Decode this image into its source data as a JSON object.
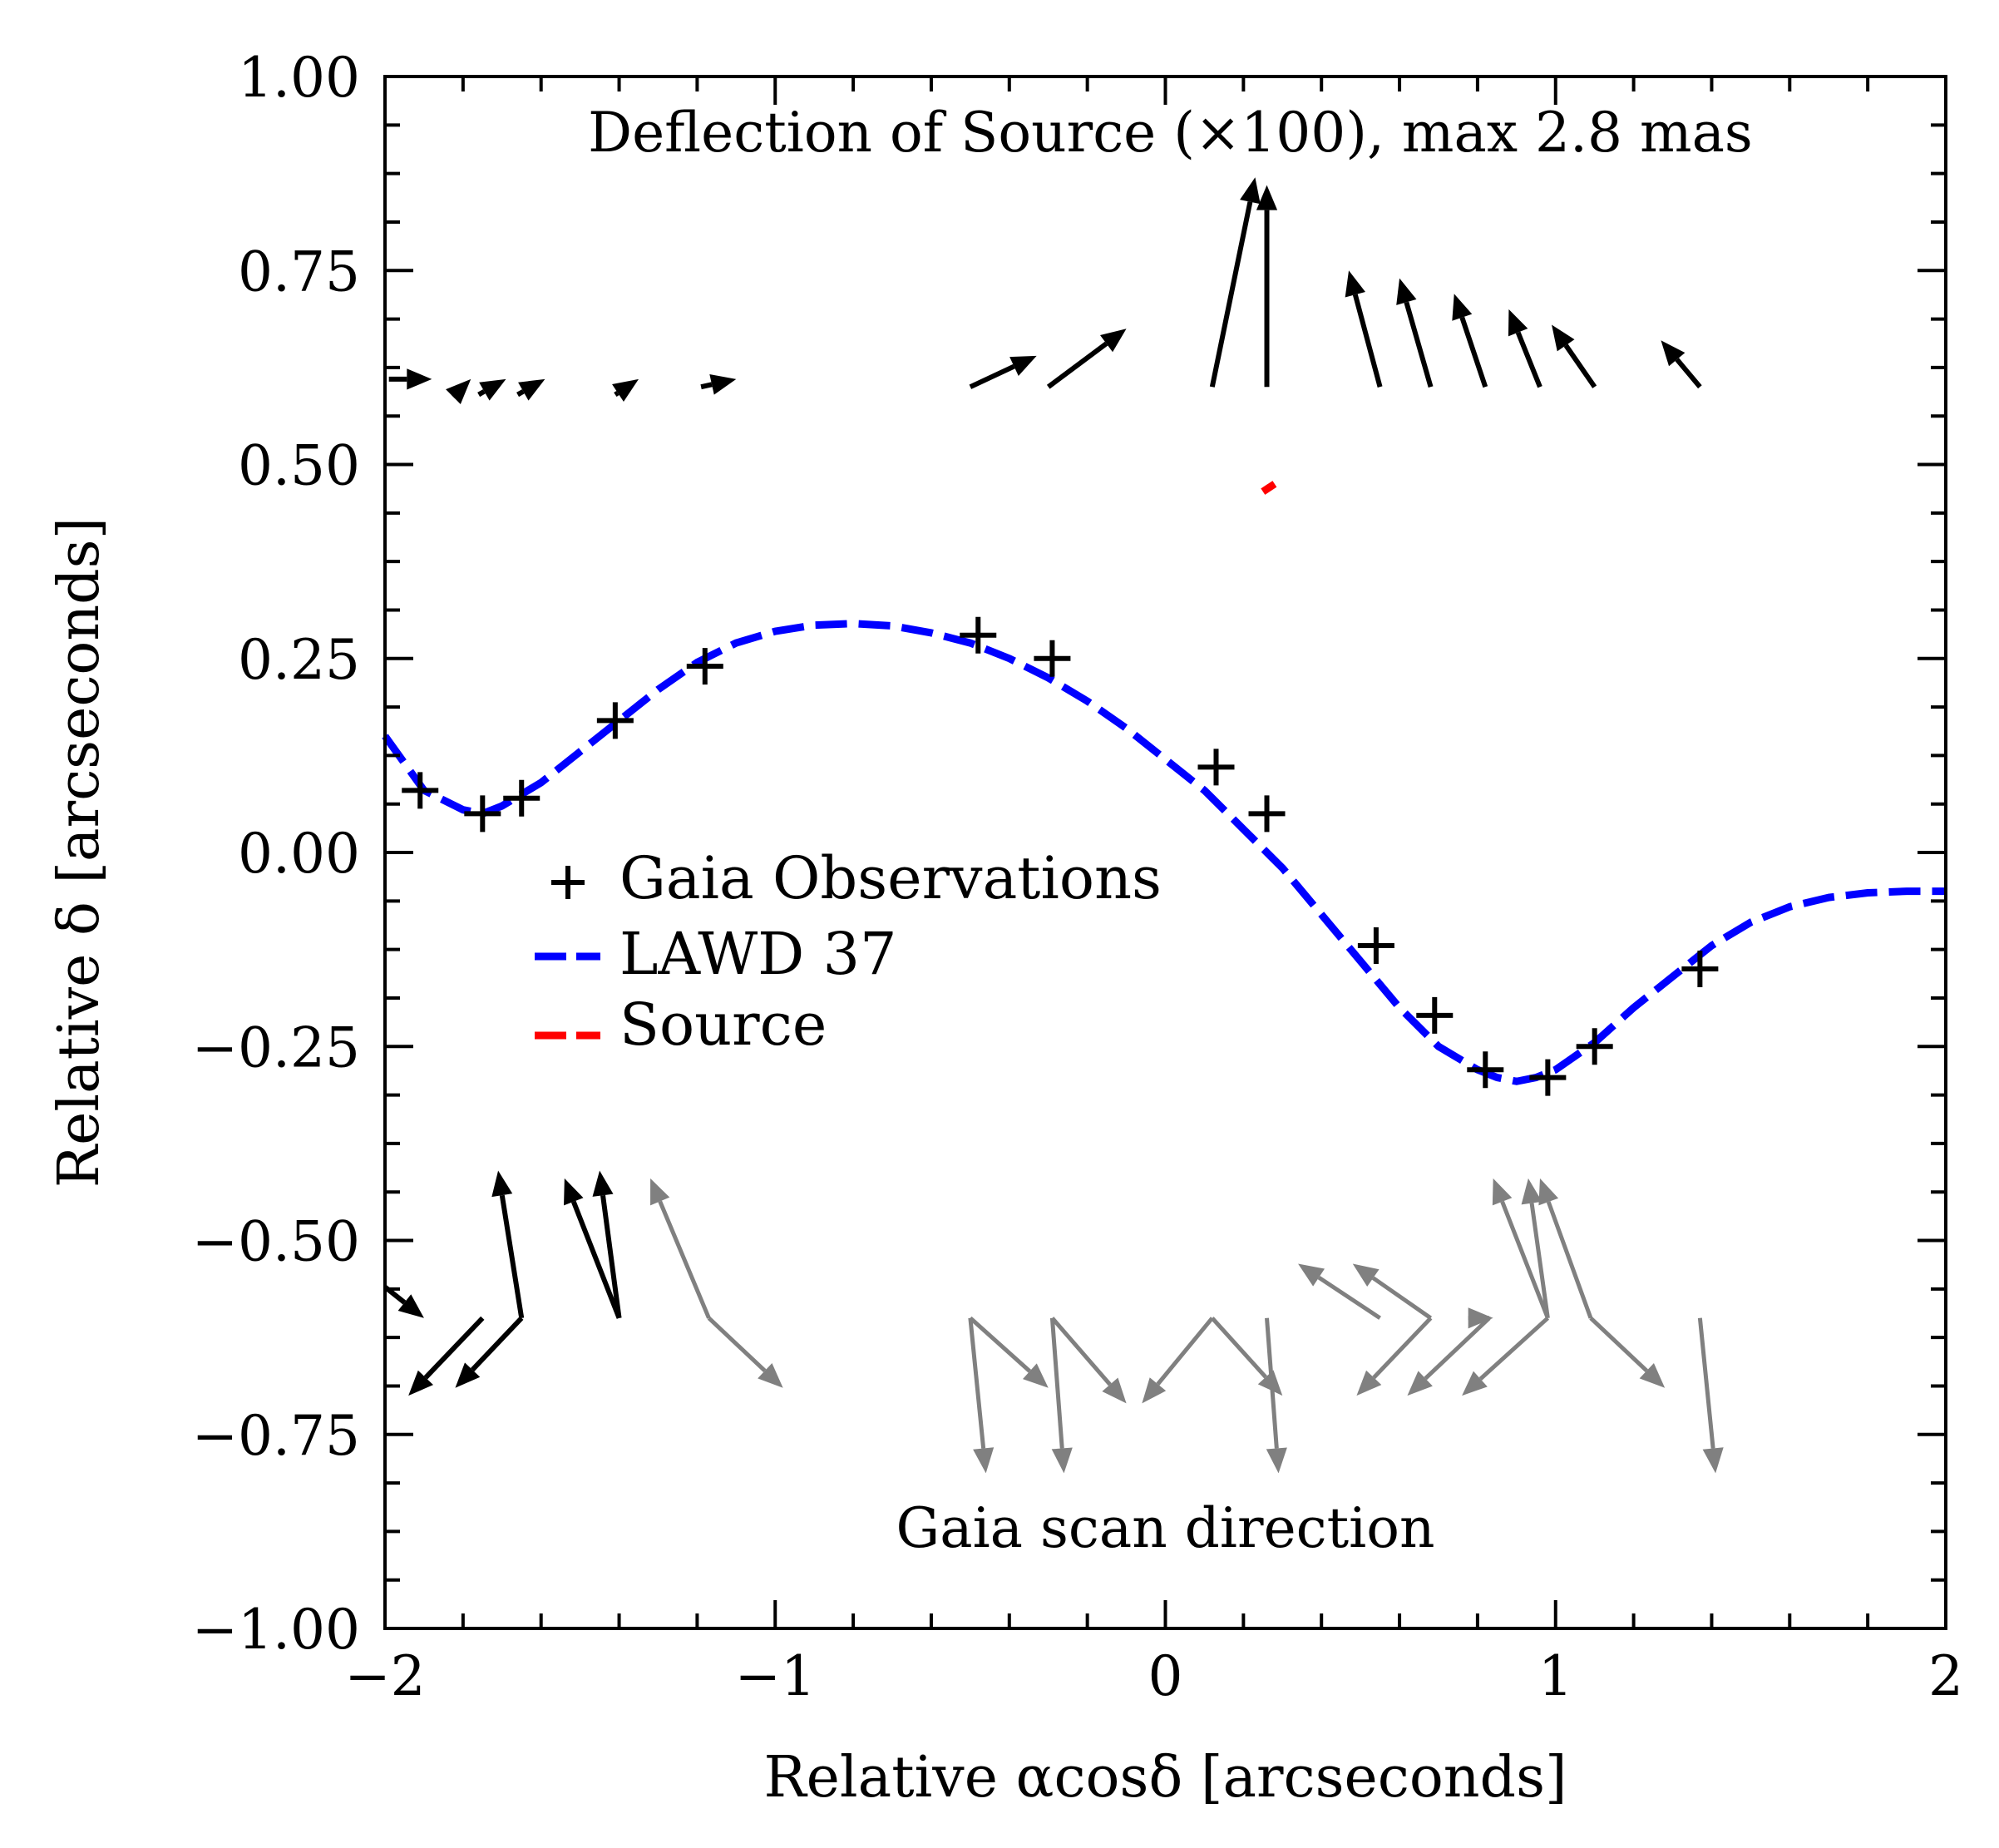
{
  "chart_data": {
    "type": "scatter",
    "xlabel": "Relative αcosδ [arcseconds]",
    "ylabel": "Relative δ [arcseconds]",
    "xlim": [
      -2,
      2
    ],
    "ylim": [
      -1,
      1
    ],
    "xticks": [
      "−2",
      "−1",
      "0",
      "1",
      "2"
    ],
    "yticks": [
      "−1.00",
      "−0.75",
      "−0.50",
      "−0.25",
      "0.00",
      "0.25",
      "0.50",
      "0.75",
      "1.00"
    ],
    "annotations": {
      "top": "Deflection of Source (×100), max 2.8 mas",
      "bottom": "Gaia scan direction"
    },
    "legend": {
      "placement": "center-left",
      "entries": [
        "Gaia Observations",
        "LAWD 37",
        "Source"
      ]
    },
    "colors": {
      "lawd": "#0000ff",
      "source": "#ff0000",
      "observations": "#000000",
      "scan_black": "#000000",
      "scan_gray": "#808080"
    },
    "gaia_observations": {
      "x": [
        -1.91,
        -1.75,
        -1.65,
        -1.41,
        -1.18,
        -0.48,
        -0.29,
        0.13,
        0.26,
        0.54,
        0.69,
        0.82,
        0.98,
        1.1,
        1.37
      ],
      "y": [
        0.08,
        0.05,
        0.07,
        0.17,
        0.24,
        0.28,
        0.25,
        0.11,
        0.05,
        -0.12,
        -0.21,
        -0.28,
        -0.29,
        -0.25,
        -0.15
      ]
    },
    "lawd37_curve": {
      "x": [
        -2.0,
        -1.9,
        -1.8,
        -1.75,
        -1.7,
        -1.6,
        -1.5,
        -1.4,
        -1.3,
        -1.2,
        -1.1,
        -1.0,
        -0.9,
        -0.8,
        -0.7,
        -0.6,
        -0.5,
        -0.4,
        -0.3,
        -0.2,
        -0.1,
        0.0,
        0.1,
        0.2,
        0.3,
        0.4,
        0.5,
        0.6,
        0.7,
        0.8,
        0.85,
        0.9,
        0.95,
        1.0,
        1.1,
        1.2,
        1.3,
        1.4,
        1.5,
        1.6,
        1.7,
        1.8,
        1.9,
        2.0
      ],
      "y": [
        0.15,
        0.08,
        0.055,
        0.05,
        0.06,
        0.09,
        0.13,
        0.17,
        0.21,
        0.245,
        0.27,
        0.285,
        0.293,
        0.295,
        0.292,
        0.283,
        0.27,
        0.25,
        0.225,
        0.195,
        0.16,
        0.12,
        0.08,
        0.03,
        -0.02,
        -0.08,
        -0.14,
        -0.2,
        -0.25,
        -0.28,
        -0.29,
        -0.295,
        -0.29,
        -0.28,
        -0.245,
        -0.2,
        -0.16,
        -0.12,
        -0.09,
        -0.07,
        -0.058,
        -0.052,
        -0.05,
        -0.05
      ]
    },
    "source_track": {
      "x": [
        0.25,
        0.28
      ],
      "y": [
        0.465,
        0.475
      ]
    },
    "deflection_arrows": {
      "color": "black",
      "segments": [
        {
          "x0": -1.99,
          "y0": 0.61,
          "x1": -1.88,
          "y1": 0.61
        },
        {
          "x0": -1.82,
          "y0": 0.59,
          "x1": -1.78,
          "y1": 0.61
        },
        {
          "x0": -1.76,
          "y0": 0.59,
          "x1": -1.69,
          "y1": 0.61
        },
        {
          "x0": -1.66,
          "y0": 0.59,
          "x1": -1.59,
          "y1": 0.61
        },
        {
          "x0": -1.41,
          "y0": 0.59,
          "x1": -1.35,
          "y1": 0.61
        },
        {
          "x0": -1.19,
          "y0": 0.6,
          "x1": -1.1,
          "y1": 0.61
        },
        {
          "x0": -0.5,
          "y0": 0.6,
          "x1": -0.33,
          "y1": 0.64
        },
        {
          "x0": -0.3,
          "y0": 0.6,
          "x1": -0.1,
          "y1": 0.675
        },
        {
          "x0": 0.12,
          "y0": 0.6,
          "x1": 0.23,
          "y1": 0.87
        },
        {
          "x0": 0.26,
          "y0": 0.6,
          "x1": 0.26,
          "y1": 0.86
        },
        {
          "x0": 0.55,
          "y0": 0.6,
          "x1": 0.47,
          "y1": 0.75
        },
        {
          "x0": 0.68,
          "y0": 0.6,
          "x1": 0.6,
          "y1": 0.74
        },
        {
          "x0": 0.82,
          "y0": 0.6,
          "x1": 0.74,
          "y1": 0.72
        },
        {
          "x0": 0.96,
          "y0": 0.6,
          "x1": 0.88,
          "y1": 0.7
        },
        {
          "x0": 1.1,
          "y0": 0.6,
          "x1": 0.99,
          "y1": 0.68
        },
        {
          "x0": 1.37,
          "y0": 0.6,
          "x1": 1.27,
          "y1": 0.66
        }
      ]
    },
    "scan_arrows": {
      "black": [
        {
          "x0": -2.0,
          "y0": -0.56,
          "x1": -1.9,
          "y1": -0.6
        },
        {
          "x0": -1.75,
          "y0": -0.6,
          "x1": -1.94,
          "y1": -0.7
        },
        {
          "x0": -1.65,
          "y0": -0.6,
          "x1": -1.82,
          "y1": -0.69
        },
        {
          "x0": -1.65,
          "y0": -0.6,
          "x1": -1.71,
          "y1": -0.41
        },
        {
          "x0": -1.4,
          "y0": -0.6,
          "x1": -1.45,
          "y1": -0.41
        },
        {
          "x0": -1.4,
          "y0": -0.6,
          "x1": -1.54,
          "y1": -0.42
        }
      ],
      "gray": [
        {
          "x0": -1.17,
          "y0": -0.6,
          "x1": -1.32,
          "y1": -0.42
        },
        {
          "x0": -1.17,
          "y0": -0.6,
          "x1": -0.98,
          "y1": -0.69
        },
        {
          "x0": -0.5,
          "y0": -0.6,
          "x1": -0.46,
          "y1": -0.8
        },
        {
          "x0": -0.5,
          "y0": -0.6,
          "x1": -0.3,
          "y1": -0.69
        },
        {
          "x0": -0.29,
          "y0": -0.6,
          "x1": -0.26,
          "y1": -0.8
        },
        {
          "x0": -0.29,
          "y0": -0.6,
          "x1": -0.1,
          "y1": -0.71
        },
        {
          "x0": 0.12,
          "y0": -0.6,
          "x1": -0.06,
          "y1": -0.71
        },
        {
          "x0": 0.12,
          "y0": -0.6,
          "x1": 0.3,
          "y1": -0.7
        },
        {
          "x0": 0.26,
          "y0": -0.6,
          "x1": 0.29,
          "y1": -0.8
        },
        {
          "x0": 0.55,
          "y0": -0.6,
          "x1": 0.34,
          "y1": -0.53
        },
        {
          "x0": 0.68,
          "y0": -0.6,
          "x1": 0.48,
          "y1": -0.53
        },
        {
          "x0": 0.68,
          "y0": -0.6,
          "x1": 0.49,
          "y1": -0.7
        },
        {
          "x0": 0.83,
          "y0": -0.6,
          "x1": 0.62,
          "y1": -0.7
        },
        {
          "x0": 0.83,
          "y0": -0.6,
          "x1": 0.84,
          "y1": -0.6
        },
        {
          "x0": 0.98,
          "y0": -0.6,
          "x1": 0.84,
          "y1": -0.42
        },
        {
          "x0": 0.98,
          "y0": -0.6,
          "x1": 0.93,
          "y1": -0.42
        },
        {
          "x0": 0.98,
          "y0": -0.6,
          "x1": 0.76,
          "y1": -0.7
        },
        {
          "x0": 1.09,
          "y0": -0.6,
          "x1": 0.96,
          "y1": -0.42
        },
        {
          "x0": 1.09,
          "y0": -0.6,
          "x1": 1.28,
          "y1": -0.69
        },
        {
          "x0": 1.37,
          "y0": -0.6,
          "x1": 1.41,
          "y1": -0.8
        }
      ]
    }
  }
}
